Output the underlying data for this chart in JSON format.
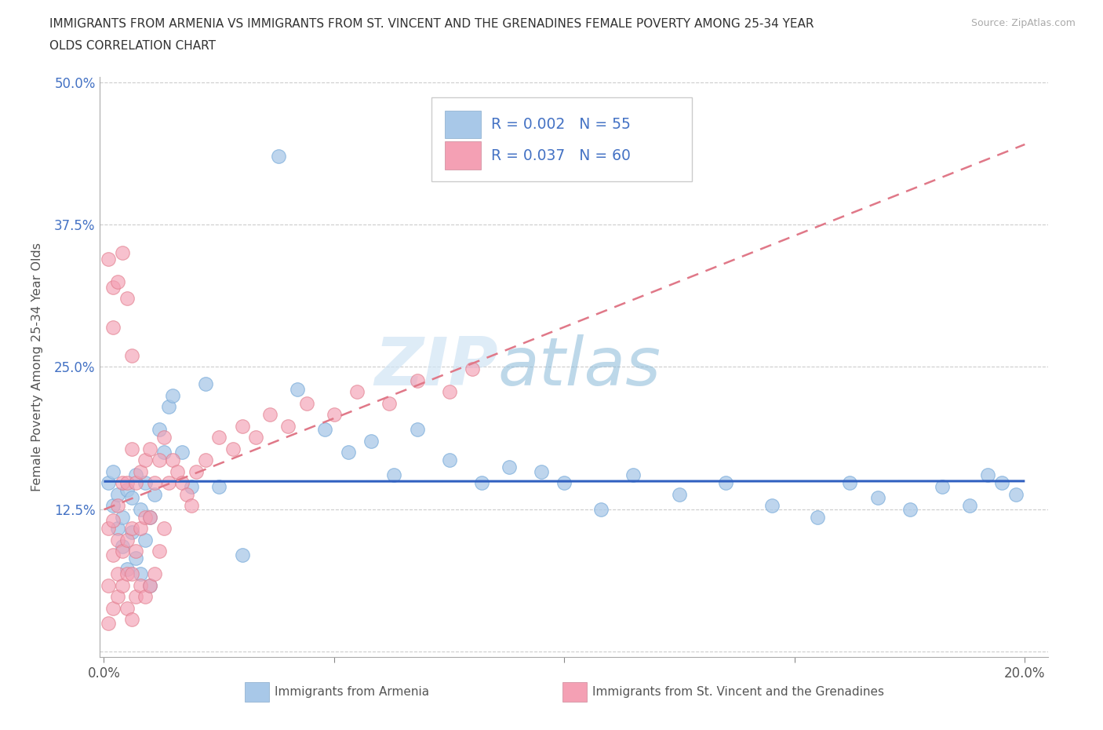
{
  "title_line1": "IMMIGRANTS FROM ARMENIA VS IMMIGRANTS FROM ST. VINCENT AND THE GRENADINES FEMALE POVERTY AMONG 25-34 YEAR",
  "title_line2": "OLDS CORRELATION CHART",
  "source_text": "Source: ZipAtlas.com",
  "ylabel": "Female Poverty Among 25-34 Year Olds",
  "xlabel_armenia": "Immigrants from Armenia",
  "xlabel_stvincent": "Immigrants from St. Vincent and the Grenadines",
  "xlim": [
    0.0,
    0.2
  ],
  "ylim": [
    0.0,
    0.5
  ],
  "R_armenia": 0.002,
  "N_armenia": 55,
  "R_stvincent": 0.037,
  "N_stvincent": 60,
  "watermark_zip": "ZIP",
  "watermark_atlas": "atlas",
  "color_armenia": "#a8c8e8",
  "color_stvincent": "#f4a0b4",
  "trendline_armenia_color": "#3060c0",
  "trendline_stvincent_color": "#e07888",
  "legend_text_color": "#4472c4",
  "arm_x": [
    0.001,
    0.002,
    0.002,
    0.003,
    0.003,
    0.004,
    0.004,
    0.005,
    0.005,
    0.006,
    0.006,
    0.007,
    0.007,
    0.008,
    0.008,
    0.009,
    0.009,
    0.01,
    0.01,
    0.011,
    0.012,
    0.013,
    0.014,
    0.015,
    0.017,
    0.019,
    0.022,
    0.025,
    0.03,
    0.038,
    0.042,
    0.048,
    0.053,
    0.058,
    0.063,
    0.068,
    0.075,
    0.082,
    0.088,
    0.095,
    0.1,
    0.108,
    0.115,
    0.125,
    0.135,
    0.145,
    0.155,
    0.162,
    0.168,
    0.175,
    0.182,
    0.188,
    0.192,
    0.195,
    0.198
  ],
  "arm_y": [
    0.148,
    0.128,
    0.158,
    0.108,
    0.138,
    0.092,
    0.118,
    0.072,
    0.142,
    0.105,
    0.135,
    0.082,
    0.155,
    0.068,
    0.125,
    0.098,
    0.148,
    0.118,
    0.058,
    0.138,
    0.195,
    0.175,
    0.215,
    0.225,
    0.175,
    0.145,
    0.235,
    0.145,
    0.085,
    0.435,
    0.23,
    0.195,
    0.175,
    0.185,
    0.155,
    0.195,
    0.168,
    0.148,
    0.162,
    0.158,
    0.148,
    0.125,
    0.155,
    0.138,
    0.148,
    0.128,
    0.118,
    0.148,
    0.135,
    0.125,
    0.145,
    0.128,
    0.155,
    0.148,
    0.138
  ],
  "stv_x": [
    0.001,
    0.001,
    0.001,
    0.002,
    0.002,
    0.002,
    0.003,
    0.003,
    0.003,
    0.003,
    0.004,
    0.004,
    0.004,
    0.005,
    0.005,
    0.005,
    0.005,
    0.006,
    0.006,
    0.006,
    0.006,
    0.007,
    0.007,
    0.007,
    0.008,
    0.008,
    0.008,
    0.009,
    0.009,
    0.009,
    0.01,
    0.01,
    0.01,
    0.011,
    0.011,
    0.012,
    0.012,
    0.013,
    0.013,
    0.014,
    0.015,
    0.016,
    0.017,
    0.018,
    0.019,
    0.02,
    0.022,
    0.025,
    0.028,
    0.03,
    0.033,
    0.036,
    0.04,
    0.044,
    0.05,
    0.055,
    0.062,
    0.068,
    0.075,
    0.08
  ],
  "stv_y": [
    0.108,
    0.058,
    0.025,
    0.085,
    0.038,
    0.115,
    0.068,
    0.048,
    0.098,
    0.128,
    0.058,
    0.088,
    0.148,
    0.038,
    0.068,
    0.098,
    0.148,
    0.028,
    0.068,
    0.108,
    0.178,
    0.048,
    0.088,
    0.148,
    0.058,
    0.108,
    0.158,
    0.048,
    0.118,
    0.168,
    0.058,
    0.118,
    0.178,
    0.068,
    0.148,
    0.088,
    0.168,
    0.108,
    0.188,
    0.148,
    0.168,
    0.158,
    0.148,
    0.138,
    0.128,
    0.158,
    0.168,
    0.188,
    0.178,
    0.198,
    0.188,
    0.208,
    0.198,
    0.218,
    0.208,
    0.228,
    0.218,
    0.238,
    0.228,
    0.248
  ],
  "stv_x_high": [
    0.001,
    0.002,
    0.002,
    0.003,
    0.004,
    0.005,
    0.006
  ],
  "stv_y_high": [
    0.345,
    0.32,
    0.285,
    0.325,
    0.35,
    0.31,
    0.26
  ]
}
